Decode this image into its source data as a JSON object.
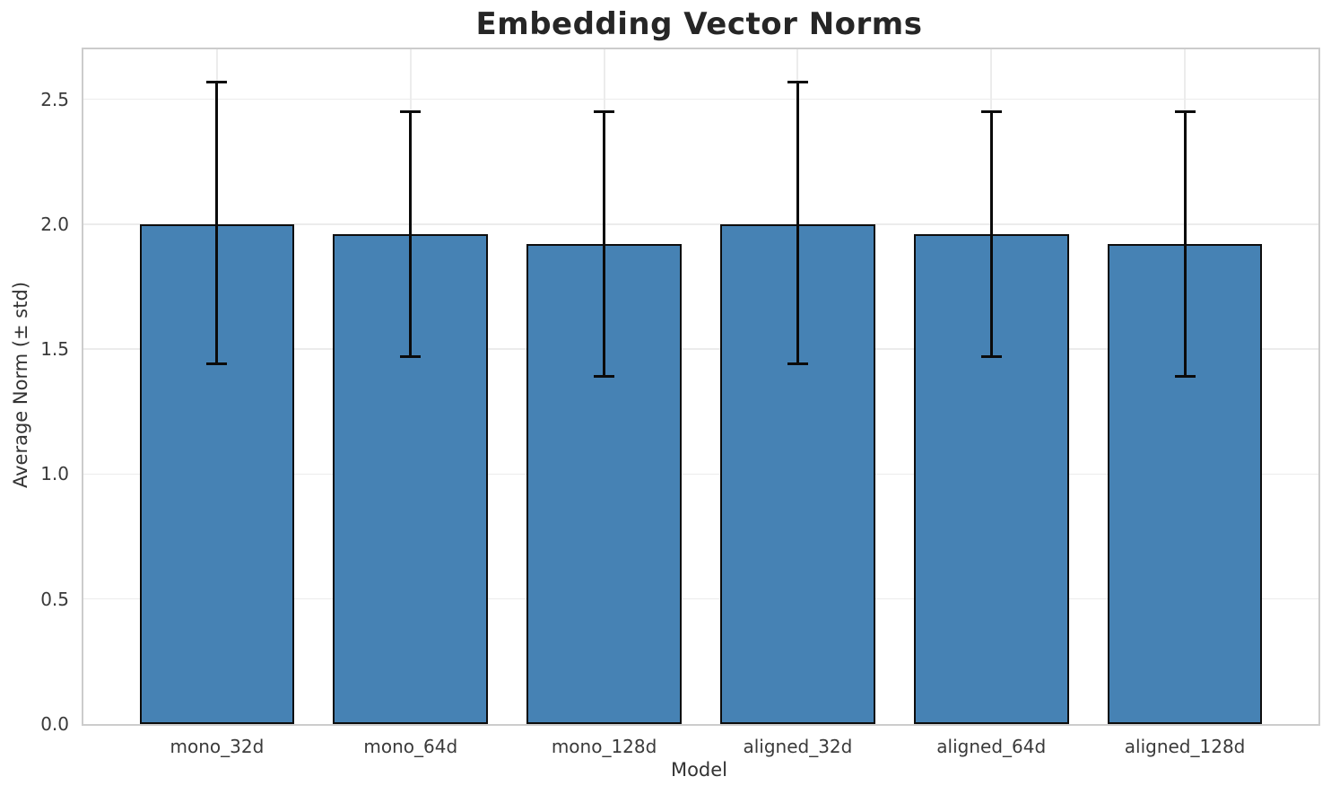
{
  "chart_data": {
    "type": "bar",
    "title": "Embedding Vector Norms",
    "xlabel": "Model",
    "ylabel": "Average Norm (± std)",
    "categories": [
      "mono_32d",
      "mono_64d",
      "mono_128d",
      "aligned_32d",
      "aligned_64d",
      "aligned_128d"
    ],
    "values": [
      2.0,
      1.96,
      1.92,
      2.0,
      1.96,
      1.92
    ],
    "error_std": [
      0.57,
      0.49,
      0.53,
      0.57,
      0.49,
      0.53
    ],
    "error_upper": [
      2.57,
      2.45,
      2.45,
      2.57,
      2.45,
      2.45
    ],
    "error_lower": [
      1.44,
      1.47,
      1.39,
      1.44,
      1.47,
      1.39
    ],
    "ytick_labels": [
      "0.0",
      "0.5",
      "1.0",
      "1.5",
      "2.0",
      "2.5"
    ],
    "ytick_values": [
      0.0,
      0.5,
      1.0,
      1.5,
      2.0,
      2.5
    ],
    "ylim": [
      0,
      2.7
    ],
    "xlim": [
      -0.69,
      5.69
    ],
    "bar_width": 0.8,
    "grid": true,
    "grid_horizontal": true,
    "grid_vertical_at_categories": true,
    "legend_position": "none",
    "error_bar_capsize_px": 23,
    "colors": {
      "bar_fill": "#4682b4",
      "bar_edge": "#0d0d0d",
      "error": "#0b0b0b",
      "grid": "#ececec",
      "spine": "#cccccc",
      "title": "#262626",
      "tick": "#3a3a3a",
      "label": "#333333",
      "background": "#ffffff"
    }
  }
}
